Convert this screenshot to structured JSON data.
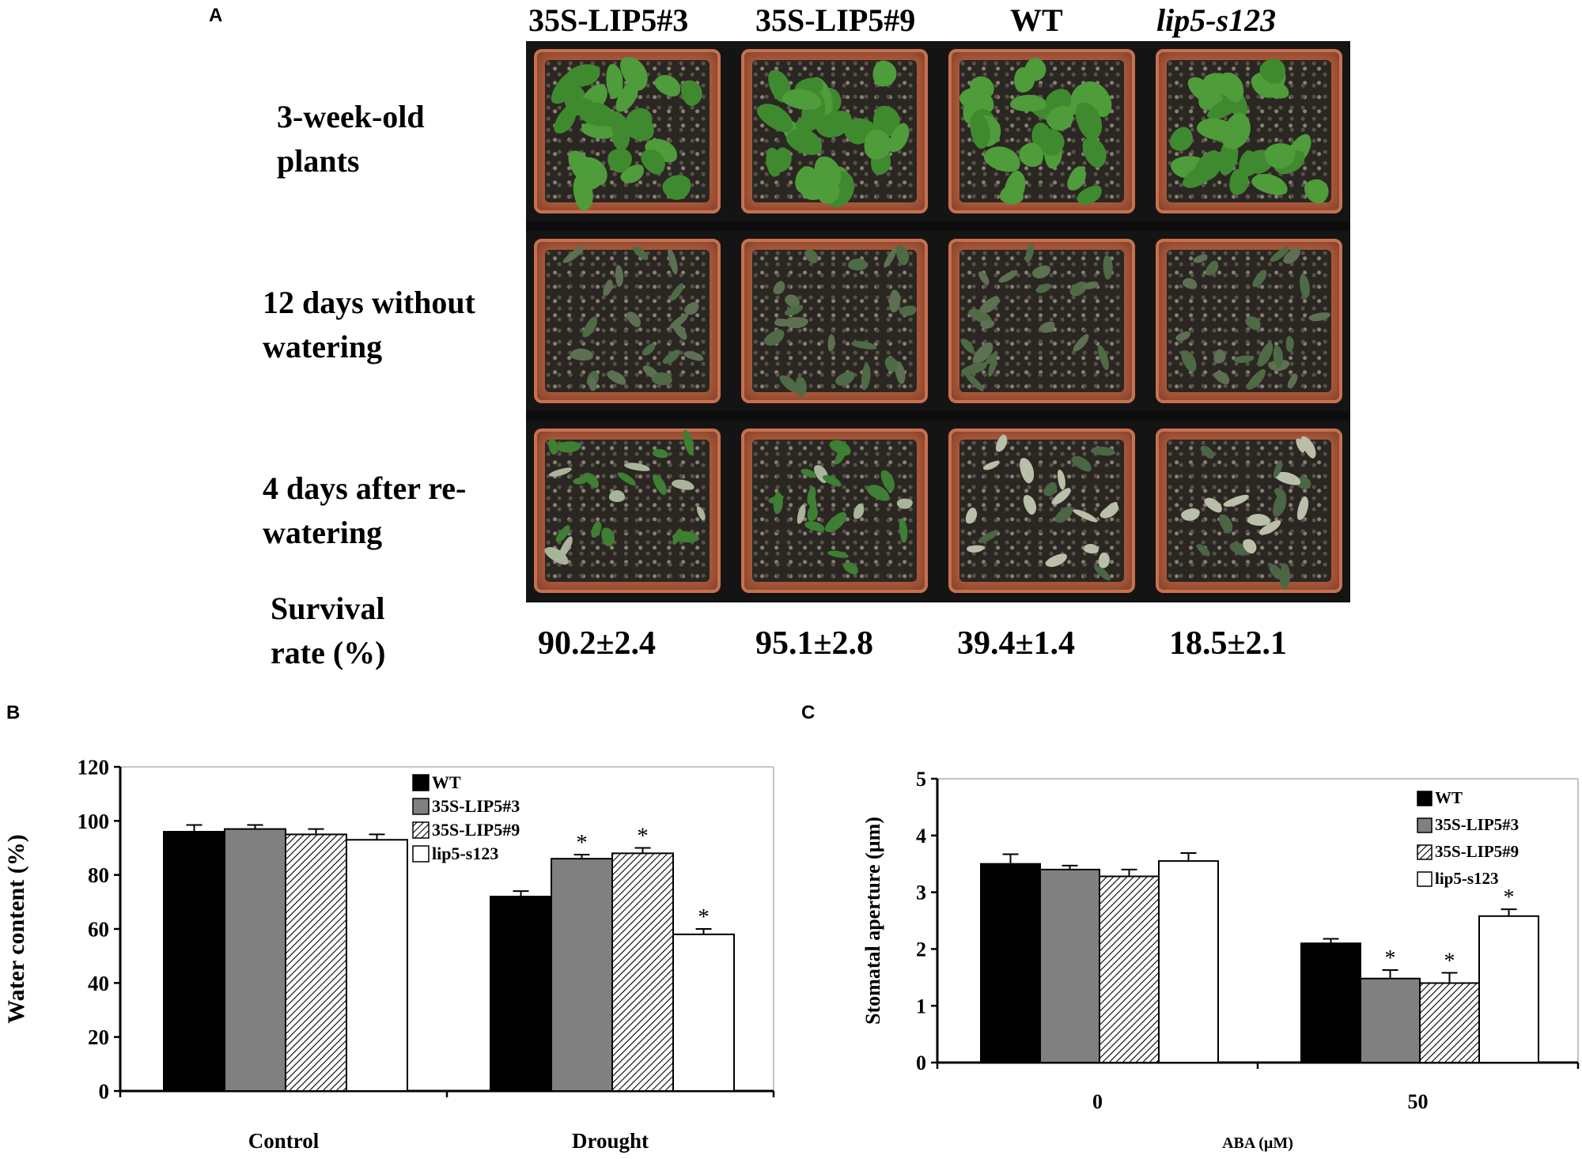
{
  "panel_a": {
    "letter": "A",
    "genotypes": [
      "35S-LIP5#3",
      "35S-LIP5#9",
      "WT",
      "lip5-s123"
    ],
    "rows": [
      {
        "line1": "3-week-old",
        "line2": "plants",
        "condition": "healthy"
      },
      {
        "line1": "12 days without",
        "line2": "watering",
        "condition": "wilted"
      },
      {
        "line1": "4 days after re-",
        "line2": "watering",
        "condition": "recovered"
      }
    ],
    "survival_label_line1": "Survival",
    "survival_label_line2": "rate (%)",
    "survival_rates": [
      "90.2±2.4",
      "95.1±2.8",
      "39.4±1.4",
      "18.5±2.1"
    ]
  },
  "panel_b": {
    "letter": "B"
  },
  "panel_c": {
    "letter": "C"
  },
  "colors": {
    "wt": "#000000",
    "lip5_3": "#808080",
    "lip5_9_hatch": "#000000",
    "lip5_s123": "#ffffff",
    "pot": "#b25b3c",
    "leaf_healthy": "#3f8a2e",
    "leaf_stressed": "#5d7052"
  },
  "chart_data": [
    {
      "type": "bar",
      "categories": [
        "Control",
        "Drought"
      ],
      "series": [
        {
          "name": "WT",
          "values": [
            96,
            72
          ],
          "errors": [
            2.5,
            2
          ],
          "sig": [
            false,
            false
          ],
          "fill": "solid-black"
        },
        {
          "name": "35S-LIP5#3",
          "values": [
            97,
            86
          ],
          "errors": [
            1.5,
            1.5
          ],
          "sig": [
            false,
            true
          ],
          "fill": "solid-gray"
        },
        {
          "name": "35S-LIP5#9",
          "values": [
            95,
            88
          ],
          "errors": [
            2,
            2
          ],
          "sig": [
            false,
            true
          ],
          "fill": "hatch"
        },
        {
          "name": "lip5-s123",
          "values": [
            93,
            58
          ],
          "errors": [
            2,
            2
          ],
          "sig": [
            false,
            true
          ],
          "fill": "white"
        }
      ],
      "ylabel": "Water content (%)",
      "xlabel": "",
      "ylim": [
        0,
        120
      ],
      "yticks": [
        0,
        20,
        40,
        60,
        80,
        100,
        120
      ],
      "legend_position": "top-right",
      "sig_marker": "*"
    },
    {
      "type": "bar",
      "categories": [
        "0",
        "50"
      ],
      "series": [
        {
          "name": "WT",
          "values": [
            3.5,
            2.1
          ],
          "errors": [
            0.17,
            0.08
          ],
          "sig": [
            false,
            false
          ],
          "fill": "solid-black"
        },
        {
          "name": "35S-LIP5#3",
          "values": [
            3.4,
            1.48
          ],
          "errors": [
            0.07,
            0.15
          ],
          "sig": [
            false,
            true
          ],
          "fill": "solid-gray"
        },
        {
          "name": "35S-LIP5#9",
          "values": [
            3.28,
            1.4
          ],
          "errors": [
            0.12,
            0.18
          ],
          "sig": [
            false,
            true
          ],
          "fill": "hatch"
        },
        {
          "name": "lip5-s123",
          "values": [
            3.55,
            2.58
          ],
          "errors": [
            0.14,
            0.12
          ],
          "sig": [
            false,
            true
          ],
          "fill": "white"
        }
      ],
      "ylabel": "Stomatal aperture (µm)",
      "xlabel": "ABA (µM)",
      "ylim": [
        0,
        5
      ],
      "yticks": [
        0,
        1,
        2,
        3,
        4,
        5
      ],
      "legend_position": "top-right",
      "sig_marker": "*"
    }
  ]
}
